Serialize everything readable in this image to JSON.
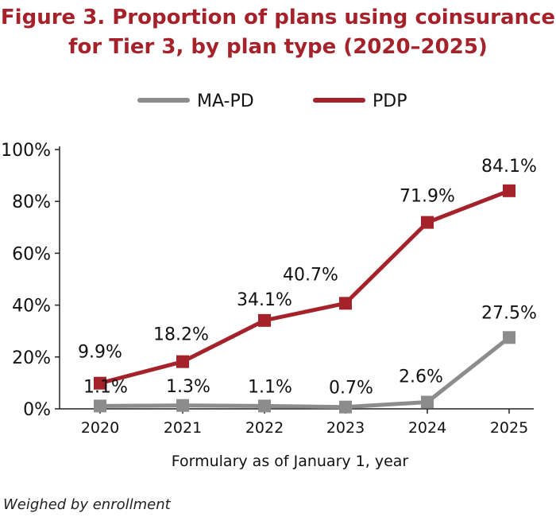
{
  "chart_data": {
    "type": "line",
    "title": "Figure 3. Proportion of plans using coinsurance for Tier 3, by plan type (2020–2025)",
    "title_lines": [
      "Figure 3. Proportion of plans using coinsurance",
      "for Tier 3, by plan type (2020–2025)"
    ],
    "x": [
      "2020",
      "2021",
      "2022",
      "2023",
      "2024",
      "2025"
    ],
    "xlabel": "Formulary as of January 1, year",
    "ylabel": "",
    "ylim": [
      0,
      100
    ],
    "yticks": [
      0,
      20,
      40,
      60,
      80,
      100
    ],
    "ytick_labels": [
      "0%",
      "20%",
      "40%",
      "60%",
      "80%",
      "100%"
    ],
    "grid": false,
    "legend_position": "top",
    "series": [
      {
        "name": "MA-PD",
        "color": "#8c8c8c",
        "values": [
          1.1,
          1.3,
          1.1,
          0.7,
          2.6,
          27.5
        ],
        "labels": [
          "1.1%",
          "1.3%",
          "1.1%",
          "0.7%",
          "2.6%",
          "27.5%"
        ]
      },
      {
        "name": "PDP",
        "color": "#a6222b",
        "values": [
          9.9,
          18.2,
          34.1,
          40.7,
          71.9,
          84.1
        ],
        "labels": [
          "9.9%",
          "18.2%",
          "34.1%",
          "40.7%",
          "71.9%",
          "84.1%"
        ]
      }
    ],
    "note": "Weighed by enrollment"
  }
}
